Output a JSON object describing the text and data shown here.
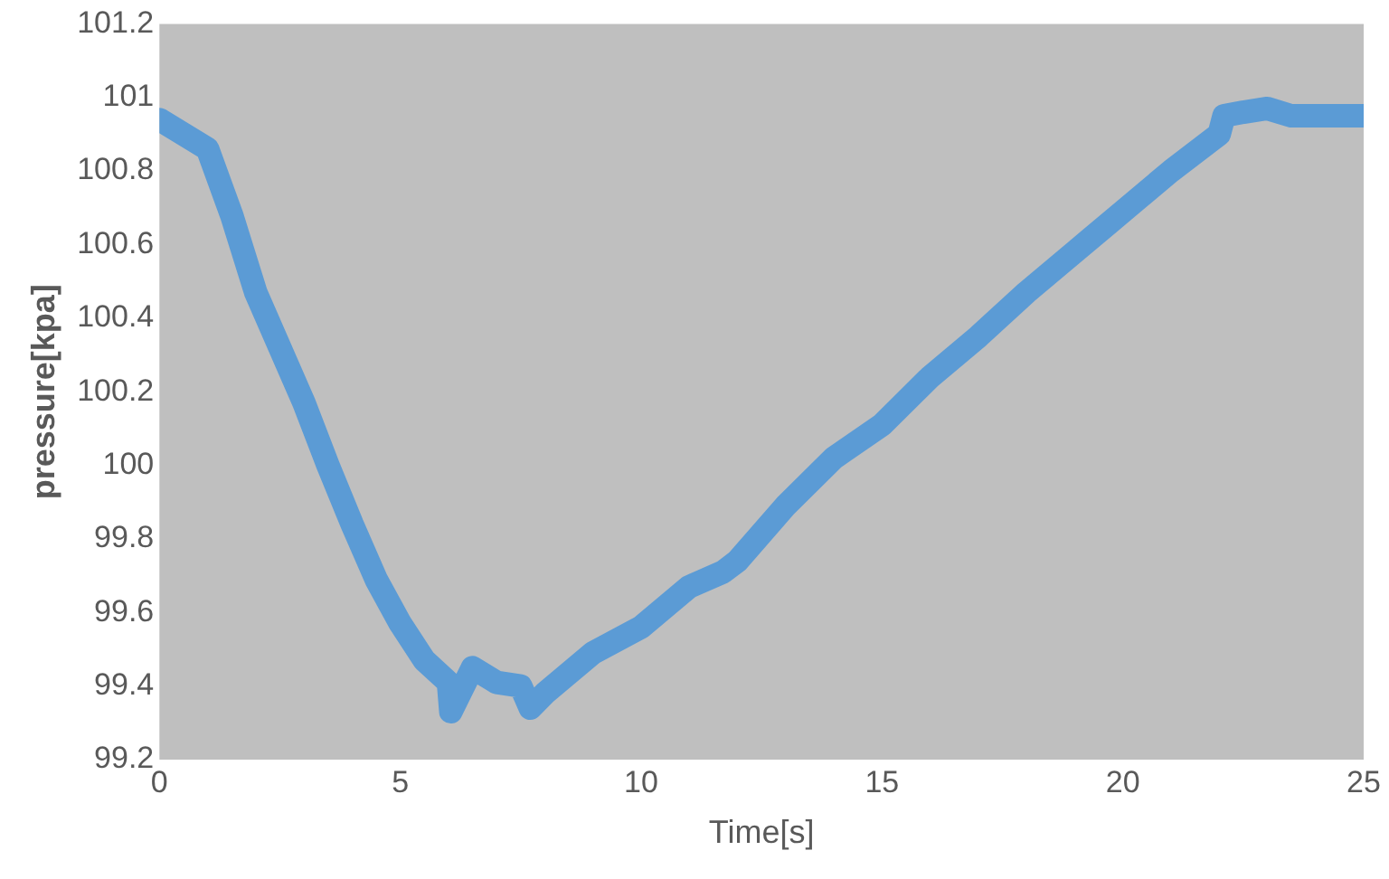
{
  "chart_data": {
    "type": "line",
    "xlabel": "Time[s]",
    "ylabel": "pressure[kpa]",
    "x": [
      0,
      0.5,
      1,
      1.5,
      2,
      2.5,
      3,
      3.5,
      4,
      4.5,
      5,
      5.5,
      6,
      6.05,
      6.5,
      7,
      7.5,
      7.7,
      8,
      9,
      10,
      11,
      11.7,
      12,
      13,
      14,
      15,
      16,
      17,
      18,
      19,
      20,
      21,
      22,
      22.1,
      22.5,
      23,
      23.5,
      24,
      25
    ],
    "series": [
      {
        "color": "#5b9bd5",
        "values": [
          100.94,
          100.9,
          100.86,
          100.68,
          100.47,
          100.32,
          100.17,
          100,
          99.84,
          99.69,
          99.57,
          99.47,
          99.41,
          99.33,
          99.45,
          99.41,
          99.4,
          99.34,
          99.38,
          99.49,
          99.56,
          99.67,
          99.71,
          99.74,
          99.89,
          100.02,
          100.11,
          100.24,
          100.35,
          100.47,
          100.58,
          100.69,
          100.8,
          100.9,
          100.95,
          100.96,
          100.97,
          100.95,
          100.95,
          100.95
        ]
      }
    ],
    "xlim": [
      0,
      25
    ],
    "xticks": [
      0,
      5,
      10,
      15,
      20,
      25
    ],
    "ylim": [
      99.2,
      101.2
    ],
    "yticks": [
      99.2,
      99.4,
      99.6,
      99.8,
      100,
      100.2,
      100.4,
      100.6,
      100.8,
      101,
      101.2
    ],
    "grid": false,
    "legend": false,
    "marker": "none",
    "line_style": "solid"
  }
}
